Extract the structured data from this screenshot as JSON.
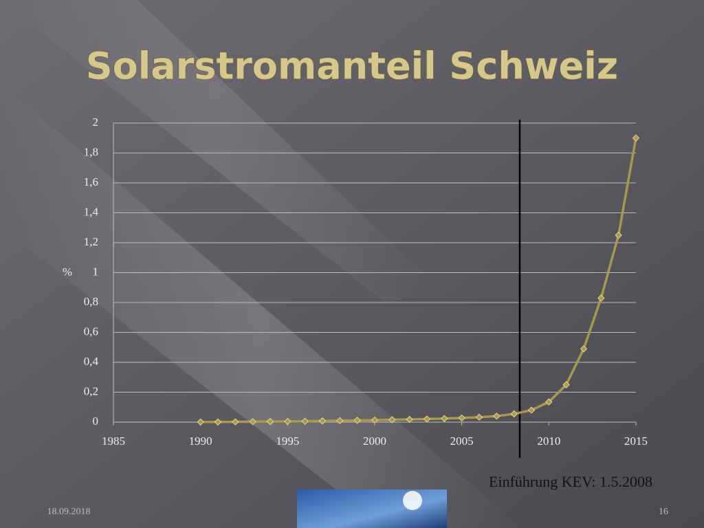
{
  "chart_data": {
    "type": "line",
    "title": "Solarstromanteil Schweiz",
    "y_label": "%",
    "x": [
      1990,
      1991,
      1992,
      1993,
      1994,
      1995,
      1996,
      1997,
      1998,
      1999,
      2000,
      2001,
      2002,
      2003,
      2004,
      2005,
      2006,
      2007,
      2008,
      2009,
      2010,
      2011,
      2012,
      2013,
      2014,
      2015
    ],
    "series": [
      {
        "name": "Solarstromanteil",
        "color": "#a8994c",
        "values": [
          0.001,
          0.001,
          0.002,
          0.003,
          0.004,
          0.005,
          0.006,
          0.008,
          0.01,
          0.012,
          0.014,
          0.016,
          0.018,
          0.021,
          0.024,
          0.028,
          0.033,
          0.04,
          0.055,
          0.08,
          0.135,
          0.25,
          0.49,
          0.83,
          1.25,
          1.9
        ]
      }
    ],
    "xlim": [
      1985,
      2015
    ],
    "xticks": [
      1985,
      1990,
      1995,
      2000,
      2005,
      2010,
      2015
    ],
    "ylim": [
      0,
      2
    ],
    "yticks": [
      0,
      {
        "value": 0.2,
        "label": "0,2"
      },
      {
        "value": 0.4,
        "label": "0,4"
      },
      {
        "value": 0.6,
        "label": "0,6"
      },
      {
        "value": 0.8,
        "label": "0,8"
      },
      1,
      {
        "value": 1.2,
        "label": "1,2"
      },
      {
        "value": 1.4,
        "label": "1,4"
      },
      {
        "value": 1.6,
        "label": "1,6"
      },
      {
        "value": 1.8,
        "label": "1,8"
      },
      2
    ],
    "grid": true,
    "marker_x": 2008.33,
    "annotation": "Einführung KEV: 1.5.2008"
  },
  "footer": {
    "date": "18.09.2018",
    "page": "16"
  }
}
